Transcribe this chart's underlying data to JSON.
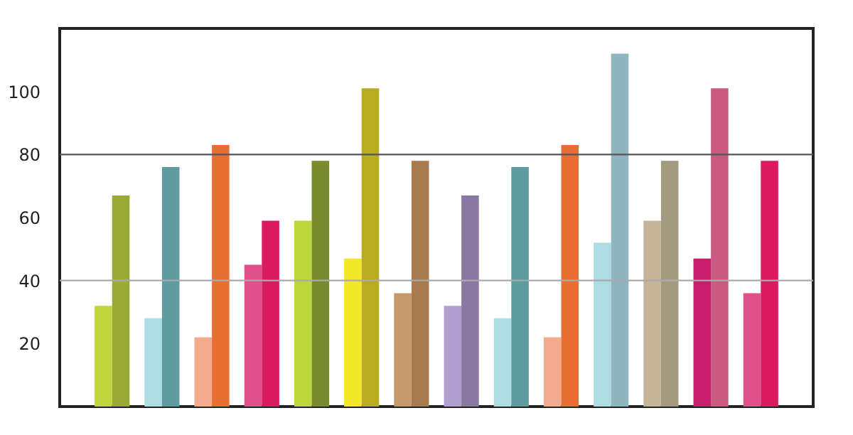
{
  "chart_data": {
    "type": "bar",
    "categories": [
      null,
      null,
      null,
      null,
      null,
      null,
      null,
      null,
      null,
      null,
      null,
      null,
      null,
      null
    ],
    "series": [
      {
        "colors": [
          "#c0d63a",
          "#acdde3",
          "#f2ab8c",
          "#e0508a",
          "#bcd63b",
          "#f2e829",
          "#c49a6c",
          "#b39fd0",
          "#acdde3",
          "#f2ab8c",
          "#acdde3",
          "#c4b598",
          "#c81e6c",
          "#e0508a"
        ],
        "values": [
          32,
          28,
          22,
          45,
          59,
          47,
          36,
          32,
          28,
          22,
          52,
          59,
          47,
          36
        ]
      },
      {
        "colors": [
          "#9aab35",
          "#5e9ca0",
          "#e86f33",
          "#d91a5f",
          "#7a8a2e",
          "#b8ad22",
          "#a87a50",
          "#8a78a3",
          "#5e9ca0",
          "#e86f33",
          "#8fb6be",
          "#a39a80",
          "#c95a80",
          "#d91a5f"
        ],
        "values": [
          67,
          76,
          83,
          59,
          78,
          101,
          78,
          67,
          76,
          83,
          112,
          78,
          101,
          78
        ]
      }
    ],
    "ylim": [
      0,
      120
    ],
    "yticks": [
      20,
      40,
      60,
      80,
      100
    ],
    "tick_labels": "y",
    "ref_lines": [
      {
        "axis": "y",
        "value": 40,
        "color": "#aaaaaa"
      },
      {
        "axis": "y",
        "value": 80,
        "color": "#555555"
      }
    ]
  }
}
